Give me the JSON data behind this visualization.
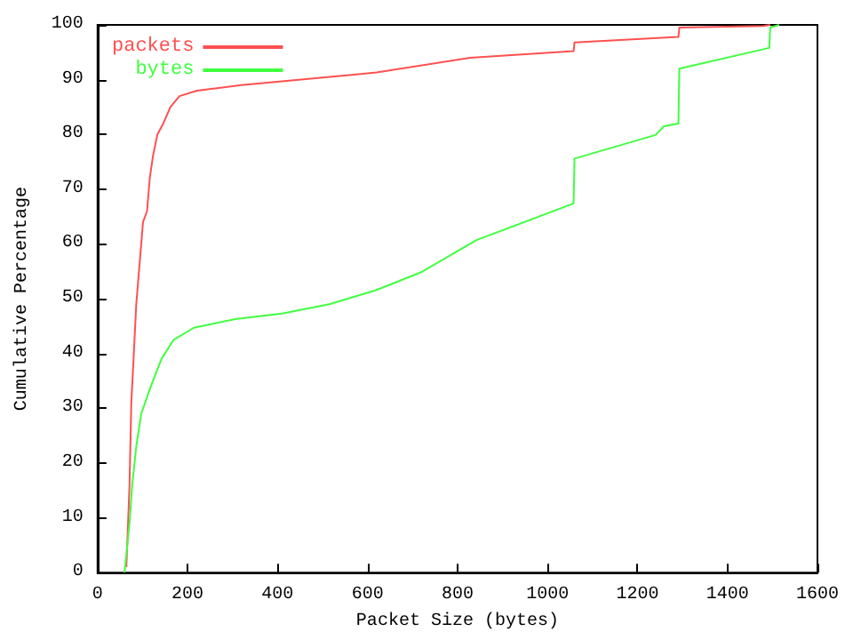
{
  "chart_data": {
    "type": "line",
    "xlabel": "Packet Size (bytes)",
    "ylabel": "Cumulative Percentage",
    "xlim": [
      0,
      1600
    ],
    "xticks": [
      0,
      200,
      400,
      600,
      800,
      1000,
      1200,
      1400,
      1600
    ],
    "ylim": [
      0,
      100
    ],
    "yticks": [
      0,
      10,
      20,
      30,
      40,
      50,
      60,
      70,
      80,
      90,
      100
    ],
    "grid": false,
    "legend": "top left",
    "series": [
      {
        "name": "packets",
        "color": "#ff5050",
        "x": [
          64,
          71,
          75,
          80,
          86,
          93,
          101,
          110,
          116,
          123,
          133,
          146,
          162,
          182,
          221,
          319,
          580,
          620,
          828,
          1058,
          1060,
          1291,
          1293,
          1480,
          1495
        ],
        "values": [
          1,
          16,
          31,
          39,
          49,
          56,
          64,
          66,
          72,
          76,
          80,
          82,
          85,
          87,
          88,
          89,
          91,
          91.3,
          94,
          95.2,
          96.8,
          97.8,
          99.5,
          99.8,
          100
        ]
      },
      {
        "name": "bytes",
        "color": "#40ff40",
        "x": [
          60,
          71,
          77,
          86,
          97,
          114,
          123,
          142,
          169,
          214,
          306,
          410,
          515,
          620,
          718,
          842,
          1058,
          1060,
          1240,
          1259,
          1291,
          1293,
          1493,
          1495,
          1515
        ],
        "values": [
          0,
          9,
          16,
          23,
          29,
          33,
          35,
          39,
          42.5,
          44.7,
          46.3,
          47.3,
          49,
          51.6,
          54.8,
          60.7,
          67.4,
          75.6,
          79.9,
          81.5,
          82,
          92,
          95.8,
          99.5,
          100
        ]
      }
    ]
  }
}
